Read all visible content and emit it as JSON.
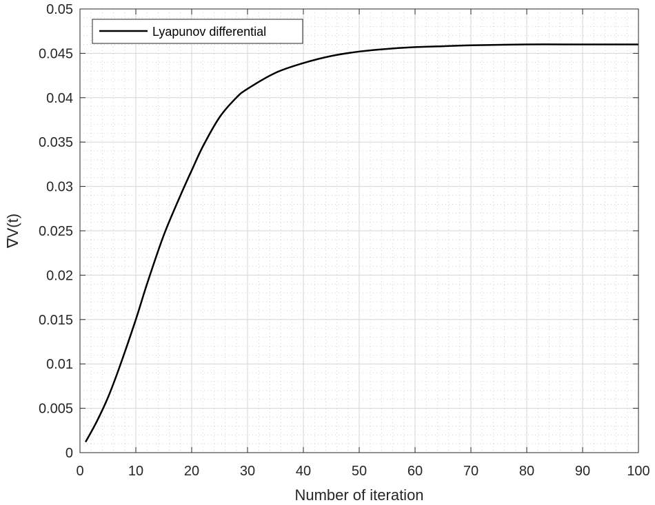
{
  "chart_data": {
    "type": "line",
    "title": "",
    "xlabel": "Number of iteration",
    "ylabel": "∇V(t)",
    "xlim": [
      0,
      100
    ],
    "ylim": [
      0,
      0.05
    ],
    "x_ticks": [
      0,
      10,
      20,
      30,
      40,
      50,
      60,
      70,
      80,
      90,
      100
    ],
    "x_tick_labels": [
      "0",
      "10",
      "20",
      "30",
      "40",
      "50",
      "60",
      "70",
      "80",
      "90",
      "100"
    ],
    "y_ticks": [
      0,
      0.005,
      0.01,
      0.015,
      0.02,
      0.025,
      0.03,
      0.035,
      0.04,
      0.045,
      0.05
    ],
    "y_tick_labels": [
      "0",
      "0.005",
      "0.01",
      "0.015",
      "0.02",
      "0.025",
      "0.03",
      "0.035",
      "0.04",
      "0.045",
      "0.05"
    ],
    "grid": true,
    "minor_grid": true,
    "legend_position": "top-left",
    "series": [
      {
        "name": "Lyapunov differential",
        "color": "#000000",
        "x": [
          1,
          3,
          5,
          7,
          10,
          12,
          15,
          18,
          20,
          22,
          25,
          28,
          30,
          35,
          40,
          45,
          50,
          55,
          60,
          65,
          70,
          80,
          90,
          100
        ],
        "y": [
          0.0012,
          0.0035,
          0.0062,
          0.0095,
          0.015,
          0.019,
          0.0245,
          0.029,
          0.0318,
          0.0345,
          0.0378,
          0.04,
          0.041,
          0.0428,
          0.0439,
          0.0447,
          0.0452,
          0.0455,
          0.0457,
          0.0458,
          0.0459,
          0.046,
          0.046,
          0.046
        ]
      }
    ]
  }
}
